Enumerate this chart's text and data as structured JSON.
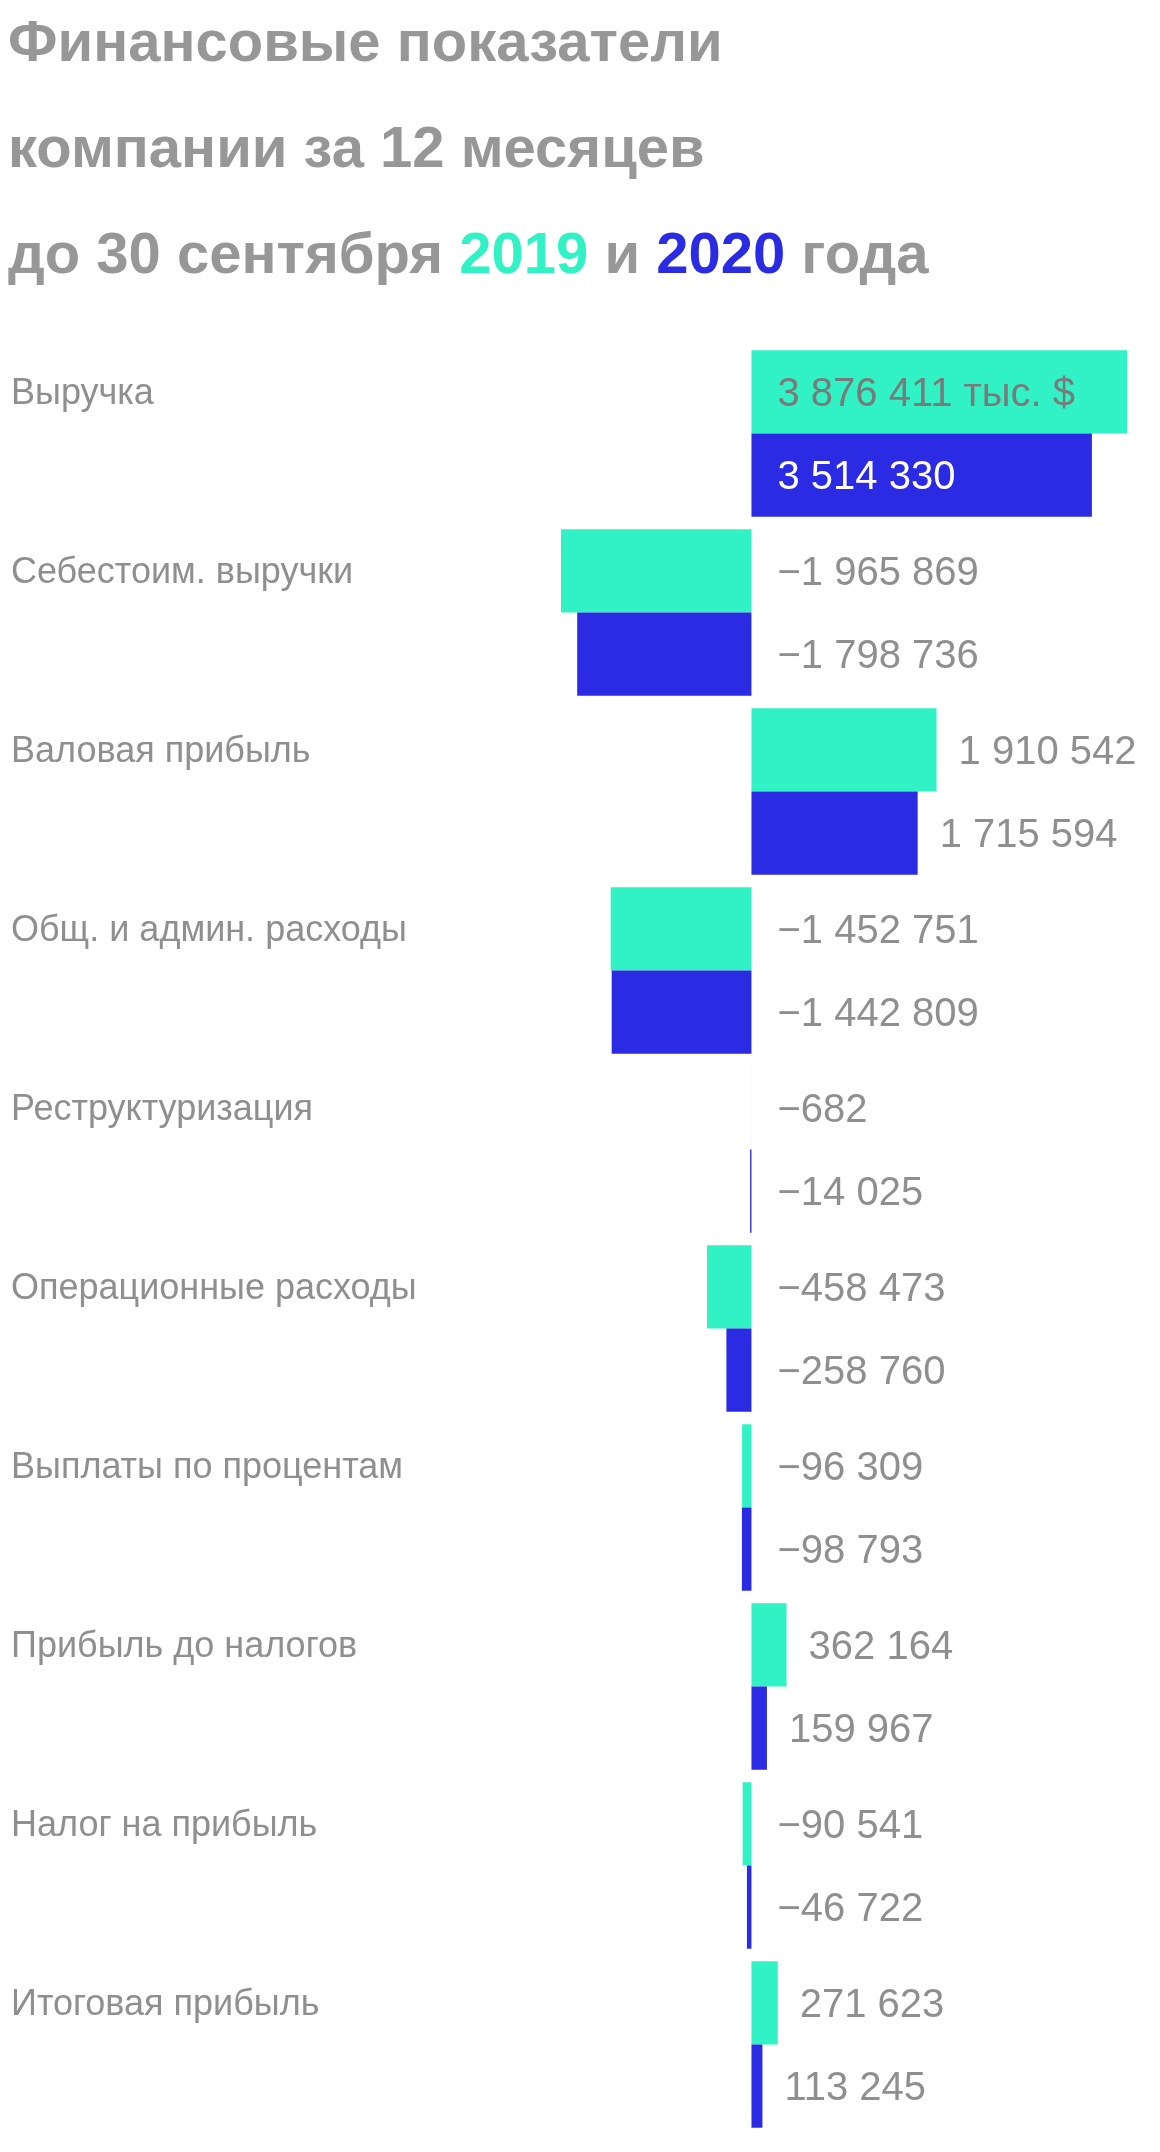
{
  "chart_data": {
    "type": "bar",
    "orientation": "horizontal",
    "title": "Финансовые показатели\nкомпании за 12 месяцев\nдо 30 сентября",
    "legend": "top",
    "annotations": [
      "и",
      "года"
    ],
    "tick_labels": "y",
    "categories": [
      "Выручка",
      "Себестоим. выручки",
      "Валовая прибыль",
      "Общ. и админ. расходы",
      "Реструктуризация",
      "Операционные расходы",
      "Выплаты по процентам",
      "Прибыль до налогов",
      "Налог на прибыль",
      "Итоговая прибыль"
    ],
    "series": [
      {
        "name": "2019",
        "color": "#30f2c4",
        "values": [
          3876411,
          -1965869,
          1910542,
          -1452751,
          -682,
          -458473,
          -96309,
          362164,
          -90541,
          271623
        ],
        "value_labels": [
          "3 876 411 тыс. $",
          "−1 965 869",
          "1 910 542",
          "−1 452 751",
          "−682",
          "−458 473",
          "−96 309",
          "362 164",
          "−90 541",
          "271 623"
        ]
      },
      {
        "name": "2020",
        "color": "#2b2be3",
        "values": [
          3514330,
          -1798736,
          1715594,
          -1442809,
          -14025,
          -258760,
          -98793,
          159967,
          -46722,
          113245
        ],
        "value_labels": [
          "3 514 330",
          "−1 798 736",
          "1 715 594",
          "−1 442 809",
          "−14 025",
          "−258 760",
          "−98 793",
          "159 967",
          "−46 722",
          "113 245"
        ]
      }
    ]
  }
}
